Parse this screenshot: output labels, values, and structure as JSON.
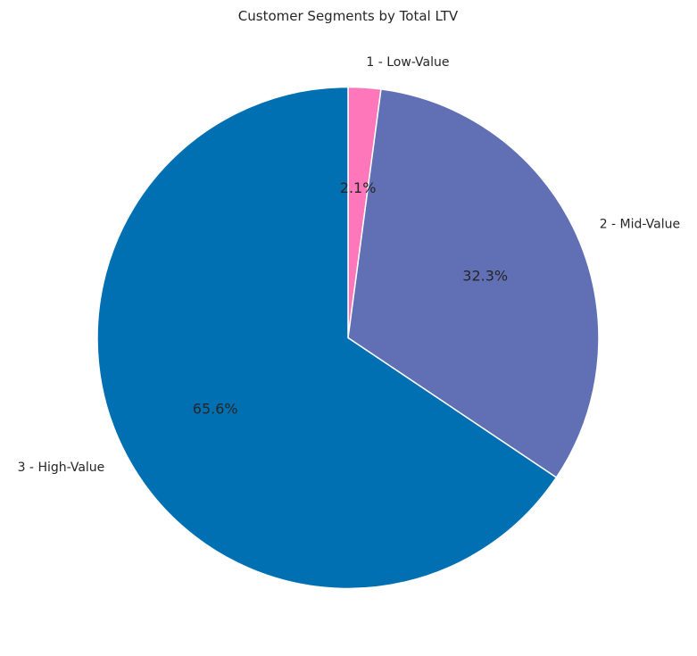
{
  "chart_data": {
    "type": "pie",
    "title": "Customer Segments by Total LTV",
    "categories": [
      "1 - Low-Value",
      "2 - Mid-Value",
      "3 - High-Value"
    ],
    "values": [
      2.1,
      32.3,
      65.6
    ],
    "percent_labels": [
      "2.1%",
      "32.3%",
      "65.6%"
    ],
    "colors": [
      "#FF77BB",
      "#6170B4",
      "#0070B3"
    ],
    "start": "top",
    "direction": "clockwise",
    "slice_border_color": "#ffffff"
  }
}
